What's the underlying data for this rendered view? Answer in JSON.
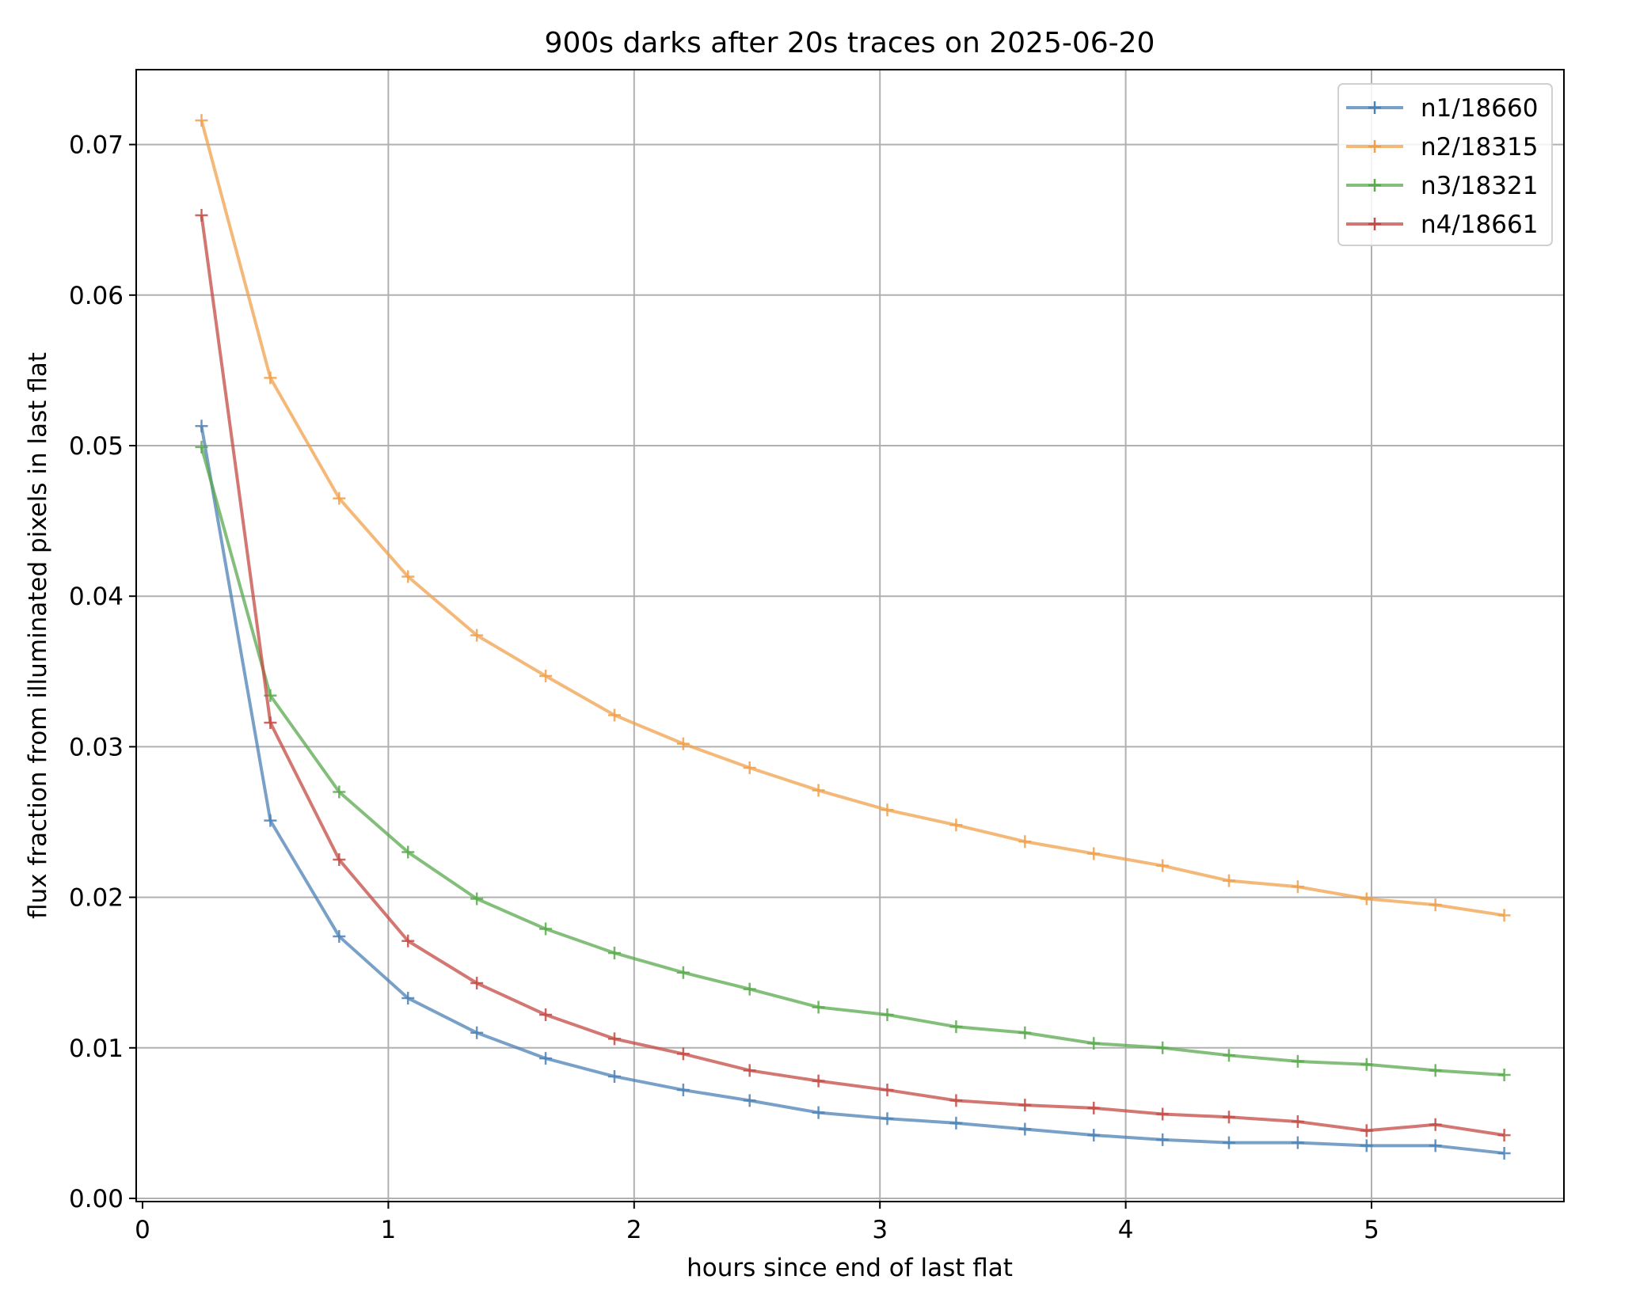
{
  "chart_data": {
    "type": "line",
    "title": "900s darks after 20s traces on 2025-06-20",
    "xlabel": "hours since end of last flat",
    "ylabel": "flux fraction from illuminated pixels in last flat",
    "xlim": [
      0,
      5.8
    ],
    "ylim": [
      0,
      0.075
    ],
    "xticks": [
      0,
      1,
      2,
      3,
      4,
      5
    ],
    "xtick_labels": [
      "0",
      "1",
      "2",
      "3",
      "4",
      "5"
    ],
    "yticks": [
      0,
      0.01,
      0.02,
      0.03,
      0.04,
      0.05,
      0.06,
      0.07
    ],
    "ytick_labels": [
      "0.00",
      "0.01",
      "0.02",
      "0.03",
      "0.04",
      "0.05",
      "0.06",
      "0.07"
    ],
    "grid": true,
    "legend_position": "top-right",
    "marker": "+",
    "x": [
      0.24,
      0.52,
      0.8,
      1.08,
      1.36,
      1.64,
      1.92,
      2.2,
      2.47,
      2.75,
      3.03,
      3.31,
      3.59,
      3.87,
      4.15,
      4.42,
      4.7,
      4.98,
      5.26,
      5.54
    ],
    "series": [
      {
        "name": "n1/18660",
        "color": "#4c82b6",
        "values": [
          0.0513,
          0.0251,
          0.0174,
          0.0133,
          0.011,
          0.0093,
          0.0081,
          0.0072,
          0.0065,
          0.0057,
          0.0053,
          0.005,
          0.0046,
          0.0042,
          0.0039,
          0.0037,
          0.0037,
          0.0035,
          0.0035,
          0.003
        ]
      },
      {
        "name": "n2/18315",
        "color": "#f0a04b",
        "values": [
          0.0716,
          0.0545,
          0.0465,
          0.0413,
          0.0374,
          0.0347,
          0.0321,
          0.0302,
          0.0286,
          0.0271,
          0.0258,
          0.0248,
          0.0237,
          0.0229,
          0.0221,
          0.0211,
          0.0207,
          0.0199,
          0.0195,
          0.0188
        ]
      },
      {
        "name": "n3/18321",
        "color": "#5aaa4e",
        "values": [
          0.0499,
          0.0334,
          0.027,
          0.023,
          0.0199,
          0.0179,
          0.0163,
          0.015,
          0.0139,
          0.0127,
          0.0122,
          0.0114,
          0.011,
          0.0103,
          0.01,
          0.0095,
          0.0091,
          0.0089,
          0.0085,
          0.0082
        ]
      },
      {
        "name": "n4/18661",
        "color": "#c44a44",
        "values": [
          0.0653,
          0.0316,
          0.0225,
          0.0171,
          0.0143,
          0.0122,
          0.0106,
          0.0096,
          0.0085,
          0.0078,
          0.0072,
          0.0065,
          0.0062,
          0.006,
          0.0056,
          0.0054,
          0.0051,
          0.0045,
          0.0049,
          0.0042
        ]
      }
    ]
  }
}
